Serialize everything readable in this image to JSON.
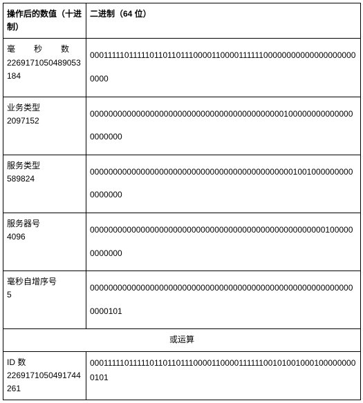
{
  "headers": {
    "col1": "操作后的数值（十进制）",
    "col2": "二进制（64 位）"
  },
  "rows": [
    {
      "label": "毫秒数",
      "labelJustify": true,
      "decimal": "2269171050489053184",
      "binary": "0001111101111101101101110000110000111111000000000000000000000000"
    },
    {
      "label": "业务类型",
      "labelJustify": false,
      "decimal": "2097152",
      "binary": "0000000000000000000000000000000000000000001000000000000000000000"
    },
    {
      "label": "服务类型",
      "labelJustify": false,
      "decimal": "589824",
      "binary": "0000000000000000000000000000000000000000000010010000000000000000"
    },
    {
      "label": "服务器号",
      "labelJustify": false,
      "decimal": "4096",
      "binary": "0000000000000000000000000000000000000000000000000001000000000000"
    },
    {
      "label": "毫秒自增序号",
      "labelJustify": false,
      "decimal": "5",
      "binary": "0000000000000000000000000000000000000000000000000000000000000101"
    }
  ],
  "operation": "或运算",
  "result": {
    "label": "ID 数",
    "decimal": "2269171050491744261",
    "binary": "0001111101111101101101110000110000111111001010010001000000000101"
  }
}
